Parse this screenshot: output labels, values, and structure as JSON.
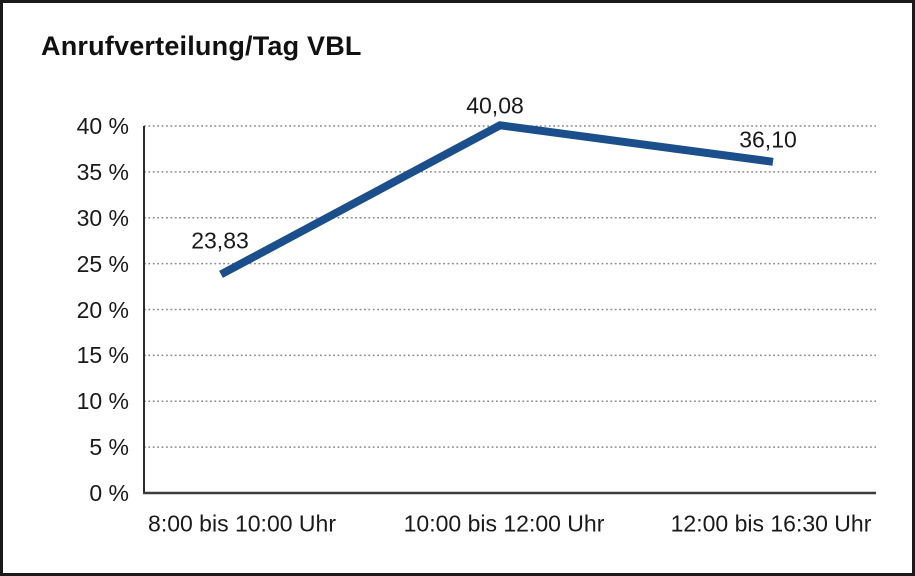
{
  "chart": {
    "title": "Anrufverteilung/Tag VBL"
  },
  "chart_data": {
    "type": "line",
    "title": "Anrufverteilung/Tag VBL",
    "categories": [
      "8:00 bis 10:00 Uhr",
      "10:00 bis 12:00 Uhr",
      "12:00 bis 16:30 Uhr"
    ],
    "values": [
      23.83,
      40.08,
      36.1
    ],
    "data_labels": [
      "23,83",
      "40,08",
      "36,10"
    ],
    "xlabel": "",
    "ylabel": "",
    "ylim": [
      0,
      40
    ],
    "y_tick_step": 5,
    "y_tick_labels": [
      "40 %",
      "35 %",
      "30 %",
      "25 %",
      "20 %",
      "15 %",
      "10 %",
      "5 %",
      "0 %"
    ],
    "grid": "horizontal-dotted",
    "legend": "none",
    "line_color": "#1A4F8C",
    "gridline_color": "#8a8a8a",
    "axis_color": "#3c3c3c",
    "text_color": "#1a1a1a",
    "background_color": "#ffffff",
    "border_color": "#1b1b1b"
  }
}
